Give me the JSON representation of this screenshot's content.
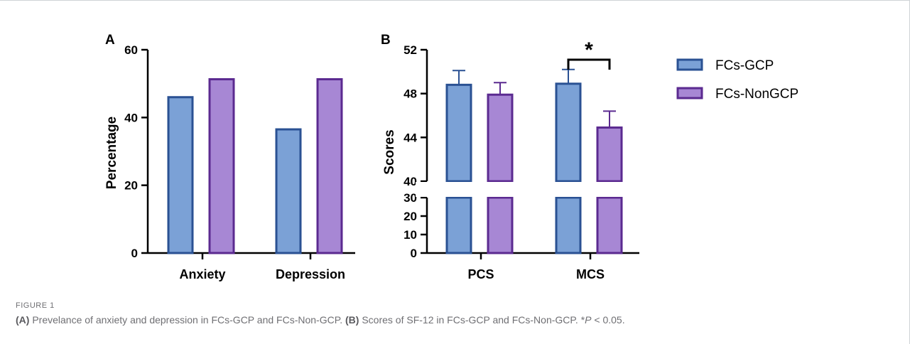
{
  "colors": {
    "gcp": "#7ba1d6",
    "gcp_edge": "#2a5193",
    "nongcp": "#a787d4",
    "nongcp_edge": "#5b2a90"
  },
  "chart_data": [
    {
      "type": "bar",
      "panel": "A",
      "ylabel": "Percentage",
      "categories": [
        "Anxiety",
        "Depression"
      ],
      "series": [
        {
          "name": "FCs-GCP",
          "values": [
            46,
            36.5
          ]
        },
        {
          "name": "FCs-NonGCP",
          "values": [
            51.3,
            51.3
          ]
        }
      ],
      "ylim": [
        0,
        60
      ],
      "yticks": [
        "0",
        "20",
        "40",
        "60"
      ]
    },
    {
      "type": "bar",
      "panel": "B",
      "ylabel": "Scores",
      "categories": [
        "PCS",
        "MCS"
      ],
      "series": [
        {
          "name": "FCs-GCP",
          "values": [
            48.8,
            48.9
          ],
          "error": [
            1.3,
            1.3
          ]
        },
        {
          "name": "FCs-NonGCP",
          "values": [
            47.9,
            44.9
          ],
          "error": [
            1.1,
            1.5
          ]
        }
      ],
      "axis_break": [
        30,
        40
      ],
      "lower_ticks": [
        "0",
        "10",
        "20",
        "30"
      ],
      "upper_ticks": [
        "40",
        "44",
        "48",
        "52"
      ],
      "significance": {
        "category": "MCS",
        "label": "*"
      },
      "legend": "right"
    }
  ],
  "caption": {
    "figure_label": "FIGURE 1",
    "a_tag": "(A)",
    "a_text": " Prevelance of anxiety and depression in FCs-GCP and FCs-Non-GCP. ",
    "b_tag": "(B)",
    "b_text": " Scores of SF-12 in FCs-GCP and FCs-Non-GCP. *",
    "p_symbol": "P",
    "p_text": " < 0.05."
  }
}
